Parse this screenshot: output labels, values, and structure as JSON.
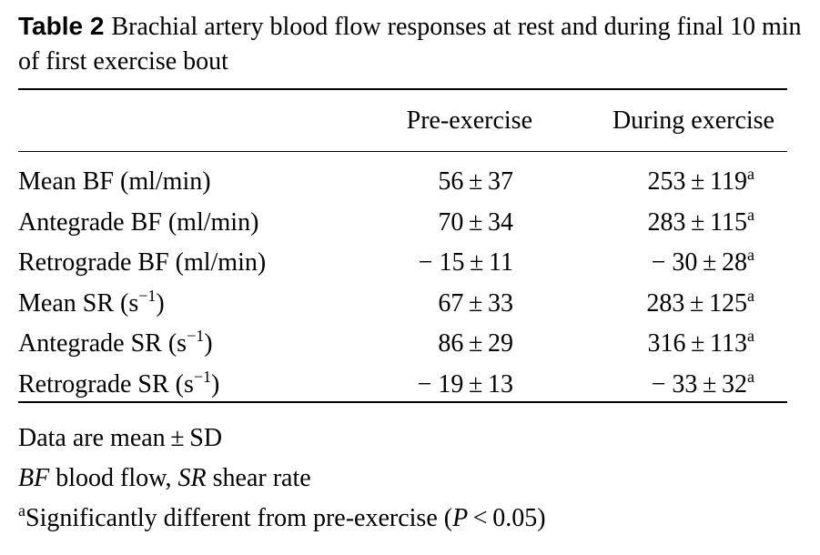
{
  "caption": {
    "label": "Table 2",
    "text": "Brachial artery blood flow responses at rest and during final 10 min of first exercise bout"
  },
  "table": {
    "columns": [
      "",
      "Pre-exercise",
      "During exercise"
    ],
    "rows": [
      {
        "label": "Mean BF (ml/min)",
        "label_sup": "",
        "pre": "56 ± 37",
        "during": "253 ± 119",
        "during_sup": "a"
      },
      {
        "label": "Antegrade BF (ml/min)",
        "label_sup": "",
        "pre": "70 ± 34",
        "during": "283 ± 115",
        "during_sup": "a"
      },
      {
        "label": "Retrograde BF (ml/min)",
        "label_sup": "",
        "pre": "− 15 ± 11",
        "during": "− 30 ± 28",
        "during_sup": "a"
      },
      {
        "label": "Mean SR (s",
        "label_sup": "−1",
        "label_end": ")",
        "pre": "67 ± 33",
        "during": "283 ± 125",
        "during_sup": "a"
      },
      {
        "label": "Antegrade SR (s",
        "label_sup": "−1",
        "label_end": ")",
        "pre": "86 ± 29",
        "during": "316 ± 113",
        "during_sup": "a"
      },
      {
        "label": "Retrograde SR (s",
        "label_sup": "−1",
        "label_end": ")",
        "pre": "− 19 ± 13",
        "during": "− 33 ± 32",
        "during_sup": "a"
      }
    ]
  },
  "footnotes": {
    "data_note": "Data are mean ± SD",
    "abbr": {
      "bf_abbr": "BF",
      "bf_text": " blood flow, ",
      "sr_abbr": "SR",
      "sr_text": " shear rate"
    },
    "sig": {
      "marker": "a",
      "text": "Significantly different from pre-exercise (",
      "p": "P",
      "cond": " < 0.05)"
    }
  }
}
